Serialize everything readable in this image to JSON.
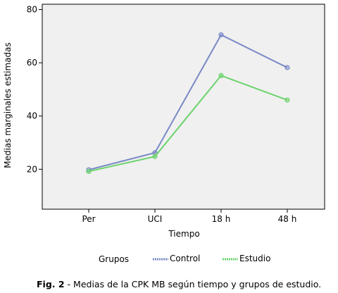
{
  "chart_data": {
    "type": "line",
    "categories": [
      "Per",
      "UCI",
      "18 h",
      "48 h"
    ],
    "series": [
      {
        "name": "Control",
        "values": [
          19.8,
          26.2,
          70.5,
          58.2
        ],
        "color": "#7a8ac6"
      },
      {
        "name": "Estudio",
        "values": [
          19.2,
          24.8,
          55.2,
          46.0
        ],
        "color": "#6cd36c"
      }
    ],
    "xlabel": "Tiempo",
    "ylabel": "Medias marginales estimadas",
    "ylim": [
      5,
      82
    ],
    "yticks": [
      20,
      40,
      60,
      80
    ],
    "legend_title": "Grupos",
    "legend_position": "bottom",
    "plot_background": "#f0f0f0"
  },
  "caption": {
    "label": "Fig. 2",
    "text": " - Medias de la CPK MB según tiempo y grupos de estudio."
  }
}
